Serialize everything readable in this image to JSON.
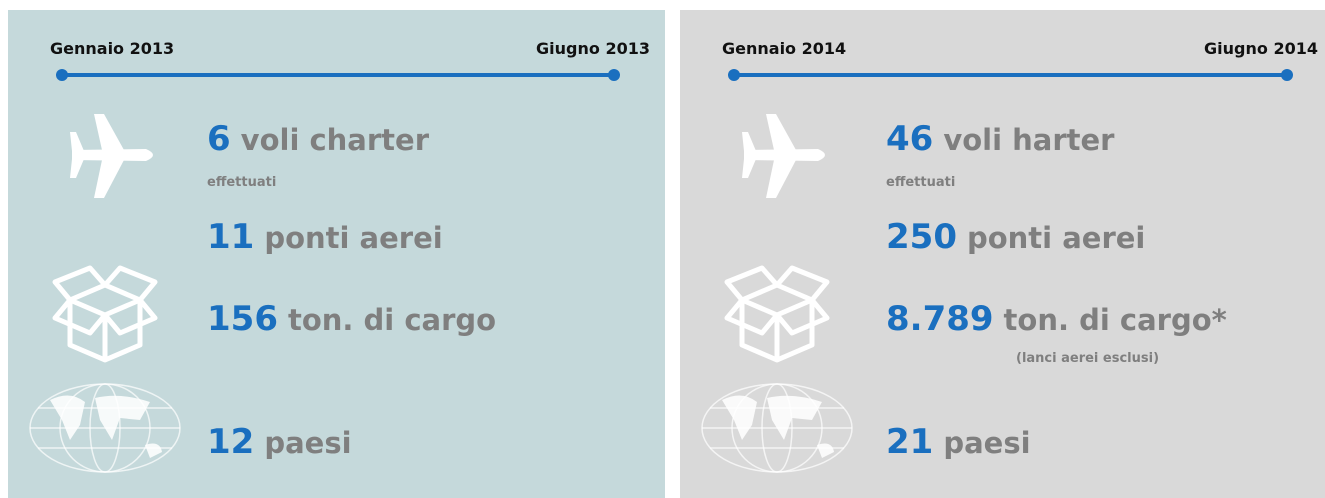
{
  "panels": [
    {
      "start": "Gennaio 2013",
      "end": "Giugno 2013",
      "stats": [
        {
          "number": "6",
          "label": "voli charter",
          "sub": "effettuati"
        },
        {
          "number": "11",
          "label": "ponti aerei"
        },
        {
          "number": "156",
          "label": "ton. di cargo"
        },
        {
          "number": "12",
          "label": "paesi"
        }
      ]
    },
    {
      "start": "Gennaio 2014",
      "end": "Giugno 2014",
      "stats": [
        {
          "number": "46",
          "label": "voli harter",
          "sub": "effettuati"
        },
        {
          "number": "250",
          "label": "ponti aerei"
        },
        {
          "number": "8.789",
          "label": "ton. di cargo*",
          "note": "(lanci aerei esclusi)"
        },
        {
          "number": "21",
          "label": "paesi"
        }
      ]
    }
  ]
}
